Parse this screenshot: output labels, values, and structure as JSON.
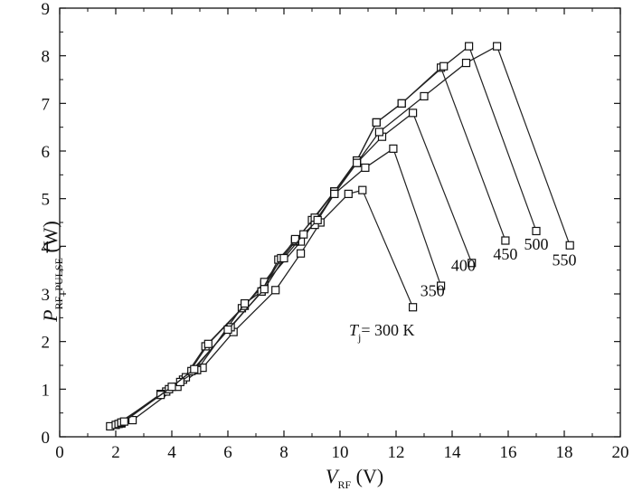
{
  "chart_data": {
    "type": "line",
    "xlabel": {
      "var": "V",
      "sub": "RF",
      "unit": " (V)"
    },
    "ylabel": {
      "var": "P",
      "sub": "RF_PULSE",
      "unit": " (W)"
    },
    "xlim": [
      0,
      20
    ],
    "ylim": [
      0,
      9
    ],
    "xticks": [
      "0",
      "2",
      "4",
      "6",
      "8",
      "10",
      "12",
      "14",
      "16",
      "18",
      "20"
    ],
    "yticks": [
      "0",
      "1",
      "2",
      "3",
      "4",
      "5",
      "6",
      "7",
      "8",
      "9"
    ],
    "grid": false,
    "label_prefix": {
      "var": "T",
      "sub": "j",
      "text": "= 300 K"
    },
    "series": [
      {
        "name": "300",
        "marker": "square",
        "x": [
          1.8,
          2.2,
          2.6,
          4.2,
          5.1,
          6.2,
          7.7,
          8.6,
          9.3,
          10.3,
          10.8
        ],
        "y": [
          0.22,
          0.28,
          0.35,
          1.05,
          1.45,
          2.2,
          3.08,
          3.85,
          4.5,
          5.1,
          5.18
        ],
        "tip": [
          12.6,
          2.72
        ]
      },
      {
        "name": "350",
        "marker": "square",
        "x": [
          2.0,
          3.8,
          4.4,
          5.2,
          6.5,
          7.3,
          8.6,
          9.8,
          10.9,
          11.9
        ],
        "y": [
          0.25,
          0.95,
          1.2,
          1.9,
          2.7,
          3.2,
          4.1,
          5.1,
          5.65,
          6.05
        ],
        "tip": [
          13.6,
          3.17
        ]
      },
      {
        "name": "400",
        "marker": "square",
        "x": [
          2.1,
          3.6,
          4.5,
          5.3,
          6.6,
          7.3,
          8.4,
          9.0,
          9.8,
          10.6,
          11.5,
          12.6
        ],
        "y": [
          0.27,
          0.9,
          1.25,
          1.95,
          2.75,
          3.25,
          4.1,
          4.55,
          5.15,
          5.75,
          6.3,
          6.8
        ],
        "tip": [
          14.7,
          3.65
        ]
      },
      {
        "name": "450",
        "marker": "square",
        "x": [
          2.2,
          3.6,
          4.3,
          4.9,
          6.6,
          7.2,
          7.8,
          8.4,
          9.1,
          9.8,
          10.6,
          11.3,
          12.2,
          13.6
        ],
        "y": [
          0.29,
          0.88,
          1.15,
          1.4,
          2.8,
          3.05,
          3.72,
          4.12,
          4.6,
          5.15,
          5.8,
          6.6,
          7.0,
          7.75
        ],
        "tip": [
          15.9,
          4.12
        ]
      },
      {
        "name": "500",
        "marker": "square",
        "x": [
          2.2,
          3.9,
          4.7,
          6.1,
          7.2,
          7.9,
          8.4,
          9.1,
          9.8,
          10.6,
          11.3,
          12.2,
          13.7,
          14.6
        ],
        "y": [
          0.3,
          1.0,
          1.38,
          2.3,
          3.05,
          3.75,
          4.15,
          4.45,
          5.15,
          5.8,
          6.6,
          7.0,
          7.78,
          8.2
        ],
        "tip": [
          17.0,
          4.32
        ]
      },
      {
        "name": "550",
        "marker": "square",
        "x": [
          2.3,
          4.0,
          4.8,
          6.0,
          7.3,
          8.0,
          8.7,
          9.2,
          9.8,
          10.6,
          11.4,
          13.0,
          14.5,
          15.6
        ],
        "y": [
          0.32,
          1.05,
          1.42,
          2.25,
          3.1,
          3.75,
          4.25,
          4.55,
          5.1,
          5.75,
          6.4,
          7.15,
          7.85,
          8.2
        ],
        "tip": [
          18.2,
          4.02
        ]
      }
    ],
    "annotations": [
      {
        "text": "350",
        "x": 13.3,
        "y": 2.95
      },
      {
        "text": "400",
        "x": 14.4,
        "y": 3.48
      },
      {
        "text": "450",
        "x": 15.9,
        "y": 3.72
      },
      {
        "text": "500",
        "x": 17.0,
        "y": 3.93
      },
      {
        "text": "550",
        "x": 18.0,
        "y": 3.6
      }
    ]
  }
}
